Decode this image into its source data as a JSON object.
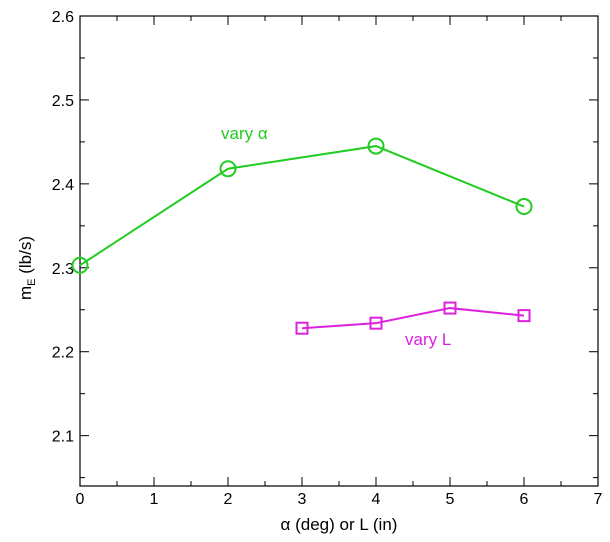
{
  "chart_data": {
    "type": "line",
    "xlabel": "α (deg) or L (in)",
    "ylabel_main": "m",
    "ylabel_sub": "E",
    "ylabel_unit": " (lb/s)",
    "xlim": [
      0,
      7
    ],
    "ylim": [
      2.04,
      2.6
    ],
    "x_ticks": [
      0,
      1,
      2,
      3,
      4,
      5,
      6,
      7
    ],
    "x_tick_labels": [
      "0",
      "1",
      "2",
      "3",
      "4",
      "5",
      "6",
      "7"
    ],
    "y_ticks": [
      2.1,
      2.2,
      2.3,
      2.4,
      2.5,
      2.6
    ],
    "y_tick_labels": [
      "2.1",
      "2.2",
      "2.3",
      "2.4",
      "2.5",
      "2.6"
    ],
    "grid": false,
    "legend": "none",
    "series": [
      {
        "name": "vary α",
        "color": "#22cc22",
        "marker": "circle",
        "x": [
          0,
          2,
          4,
          6
        ],
        "y": [
          2.303,
          2.418,
          2.445,
          2.373
        ]
      },
      {
        "name": "vary L",
        "color": "#dd22dd",
        "marker": "square",
        "x": [
          3,
          4,
          5,
          6
        ],
        "y": [
          2.228,
          2.234,
          2.252,
          2.243
        ]
      }
    ]
  }
}
